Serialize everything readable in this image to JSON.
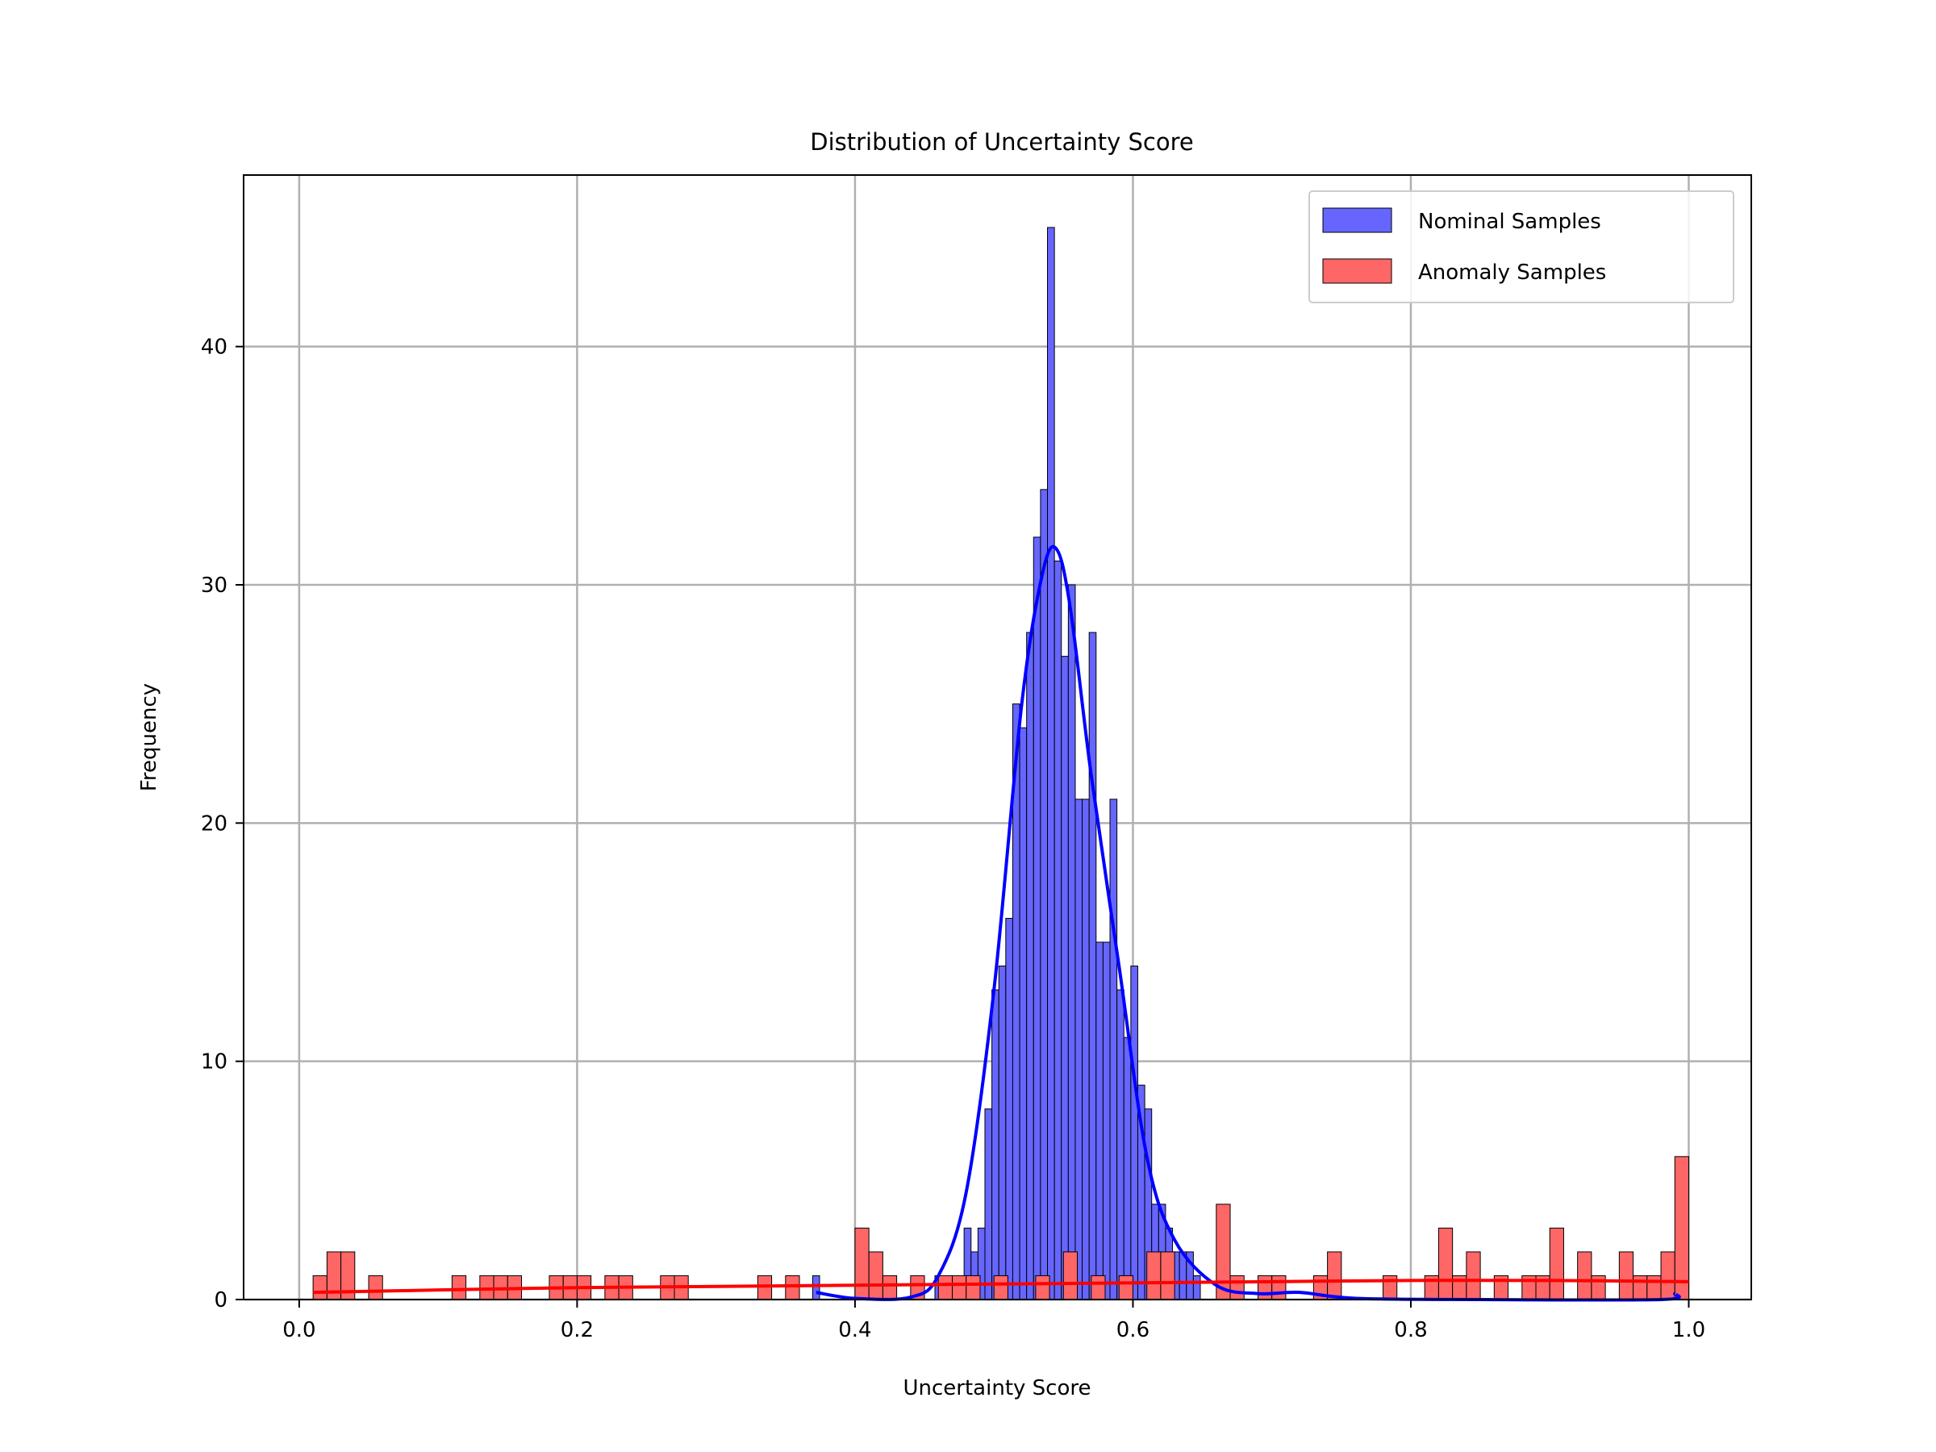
{
  "chart_data": {
    "type": "histogram",
    "title": "Distribution of Uncertainty Score",
    "xlabel": "Uncertainty Score",
    "ylabel": "Frequency",
    "xlim": [
      -0.04,
      1.045
    ],
    "ylim": [
      0,
      47.2
    ],
    "xticks": [
      0.0,
      0.2,
      0.4,
      0.6,
      0.8,
      1.0
    ],
    "xtick_labels": [
      "0.0",
      "0.2",
      "0.4",
      "0.6",
      "0.8",
      "1.0"
    ],
    "yticks": [
      0,
      10,
      20,
      30,
      40
    ],
    "ytick_labels": [
      "0",
      "10",
      "20",
      "30",
      "40"
    ],
    "grid": true,
    "legend_position": "top-right",
    "series": [
      {
        "name": "Nominal Samples",
        "color": "#6666ff",
        "bin_width": 0.005,
        "bins": [
          [
            0.372,
            1
          ],
          [
            0.46,
            1
          ],
          [
            0.465,
            1
          ],
          [
            0.47,
            1
          ],
          [
            0.476,
            1
          ],
          [
            0.481,
            3
          ],
          [
            0.486,
            2
          ],
          [
            0.491,
            3
          ],
          [
            0.496,
            8
          ],
          [
            0.501,
            13
          ],
          [
            0.506,
            14
          ],
          [
            0.511,
            16
          ],
          [
            0.516,
            25
          ],
          [
            0.521,
            24
          ],
          [
            0.526,
            28
          ],
          [
            0.531,
            32
          ],
          [
            0.536,
            34
          ],
          [
            0.541,
            45
          ],
          [
            0.546,
            31
          ],
          [
            0.551,
            27
          ],
          [
            0.556,
            30
          ],
          [
            0.561,
            21
          ],
          [
            0.566,
            21
          ],
          [
            0.571,
            28
          ],
          [
            0.576,
            15
          ],
          [
            0.581,
            15
          ],
          [
            0.586,
            21
          ],
          [
            0.591,
            13
          ],
          [
            0.596,
            11
          ],
          [
            0.601,
            14
          ],
          [
            0.606,
            9
          ],
          [
            0.611,
            8
          ],
          [
            0.616,
            4
          ],
          [
            0.621,
            4
          ],
          [
            0.626,
            3
          ],
          [
            0.631,
            2
          ],
          [
            0.636,
            2
          ],
          [
            0.641,
            2
          ],
          [
            0.646,
            1
          ]
        ],
        "kde_color": "#0000ff",
        "kde": [
          [
            0.372,
            0.3
          ],
          [
            0.4,
            0.05
          ],
          [
            0.44,
            0.1
          ],
          [
            0.46,
            1.0
          ],
          [
            0.48,
            4.5
          ],
          [
            0.5,
            13
          ],
          [
            0.52,
            25
          ],
          [
            0.535,
            30.5
          ],
          [
            0.545,
            31.5
          ],
          [
            0.555,
            29
          ],
          [
            0.57,
            22
          ],
          [
            0.59,
            14
          ],
          [
            0.61,
            6
          ],
          [
            0.63,
            2.5
          ],
          [
            0.66,
            0.6
          ],
          [
            0.69,
            0.25
          ],
          [
            0.72,
            0.3
          ],
          [
            0.76,
            0.05
          ],
          [
            0.85,
            0.0
          ],
          [
            0.98,
            0.0
          ],
          [
            0.99,
            0.25
          ]
        ]
      },
      {
        "name": "Anomaly Samples",
        "color": "#ff6666",
        "bin_width": 0.01,
        "bins": [
          [
            0.015,
            1
          ],
          [
            0.025,
            2
          ],
          [
            0.035,
            2
          ],
          [
            0.055,
            1
          ],
          [
            0.115,
            1
          ],
          [
            0.135,
            1
          ],
          [
            0.145,
            1
          ],
          [
            0.155,
            1
          ],
          [
            0.185,
            1
          ],
          [
            0.195,
            1
          ],
          [
            0.205,
            1
          ],
          [
            0.225,
            1
          ],
          [
            0.235,
            1
          ],
          [
            0.265,
            1
          ],
          [
            0.275,
            1
          ],
          [
            0.335,
            1
          ],
          [
            0.355,
            1
          ],
          [
            0.405,
            3
          ],
          [
            0.415,
            2
          ],
          [
            0.425,
            1
          ],
          [
            0.445,
            1
          ],
          [
            0.465,
            1
          ],
          [
            0.475,
            1
          ],
          [
            0.485,
            1
          ],
          [
            0.505,
            1
          ],
          [
            0.535,
            1
          ],
          [
            0.555,
            2
          ],
          [
            0.575,
            1
          ],
          [
            0.595,
            1
          ],
          [
            0.615,
            2
          ],
          [
            0.625,
            2
          ],
          [
            0.665,
            4
          ],
          [
            0.675,
            1
          ],
          [
            0.695,
            1
          ],
          [
            0.705,
            1
          ],
          [
            0.735,
            1
          ],
          [
            0.745,
            2
          ],
          [
            0.785,
            1
          ],
          [
            0.815,
            1
          ],
          [
            0.825,
            3
          ],
          [
            0.835,
            1
          ],
          [
            0.845,
            2
          ],
          [
            0.865,
            1
          ],
          [
            0.885,
            1
          ],
          [
            0.895,
            1
          ],
          [
            0.905,
            3
          ],
          [
            0.925,
            2
          ],
          [
            0.935,
            1
          ],
          [
            0.955,
            2
          ],
          [
            0.965,
            1
          ],
          [
            0.975,
            1
          ],
          [
            0.985,
            2
          ],
          [
            0.995,
            6
          ]
        ],
        "kde_color": "#ff0000",
        "kde": [
          [
            0.01,
            0.3
          ],
          [
            0.1,
            0.4
          ],
          [
            0.2,
            0.5
          ],
          [
            0.3,
            0.55
          ],
          [
            0.4,
            0.6
          ],
          [
            0.5,
            0.65
          ],
          [
            0.6,
            0.7
          ],
          [
            0.7,
            0.75
          ],
          [
            0.8,
            0.8
          ],
          [
            0.9,
            0.8
          ],
          [
            1.0,
            0.75
          ]
        ]
      }
    ]
  }
}
